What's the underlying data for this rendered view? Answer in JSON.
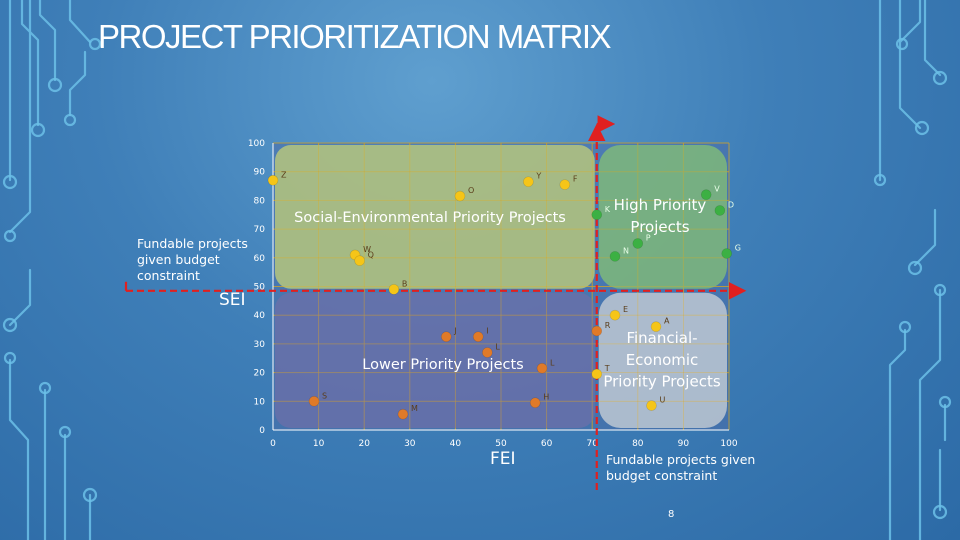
{
  "slide": {
    "title": "PROJECT PRIORITIZATION MATRIX",
    "page_number": "8"
  },
  "colors": {
    "grid": "#c8a030",
    "threshold": "#e02020",
    "quad_social": "#b9c87a",
    "quad_high": "#7fb87a",
    "quad_lower": "#6f6fa8",
    "quad_financial": "#c5cdd4",
    "pt_yellow": "#f5c518",
    "pt_green": "#3cb043",
    "pt_orange": "#e07a28"
  },
  "chart_data": {
    "type": "scatter",
    "title": "PROJECT PRIORITIZATION MATRIX",
    "xlabel": "FEI",
    "ylabel": "SEI",
    "xlim": [
      0,
      100
    ],
    "ylim": [
      0,
      100
    ],
    "x_ticks": [
      0,
      10,
      20,
      30,
      40,
      50,
      60,
      70,
      80,
      90,
      100
    ],
    "y_ticks": [
      0,
      10,
      20,
      30,
      40,
      50,
      60,
      70,
      80,
      90,
      100
    ],
    "grid": true,
    "thresholds": {
      "x": 71,
      "y": 48.5
    },
    "threshold_label_x": "Fundable projects given budget constraint",
    "threshold_label_y": "Fundable projects given budget constraint",
    "quadrants": [
      {
        "key": "social",
        "label": "Social-Environmental Priority Projects",
        "x0": 0,
        "x1": 71,
        "y0": 48.5,
        "y1": 100
      },
      {
        "key": "high",
        "label": "High Priority Projects",
        "x0": 71,
        "x1": 100,
        "y0": 48.5,
        "y1": 100
      },
      {
        "key": "lower",
        "label": "Lower Priority Projects",
        "x0": 0,
        "x1": 71,
        "y0": 0,
        "y1": 48.5
      },
      {
        "key": "financial",
        "label": "Financial-Economic Priority Projects",
        "x0": 71,
        "x1": 100,
        "y0": 0,
        "y1": 48.5
      }
    ],
    "points": [
      {
        "label": "Z",
        "x": 0,
        "y": 87,
        "color": "yellow"
      },
      {
        "label": "O",
        "x": 41,
        "y": 81.5,
        "color": "yellow"
      },
      {
        "label": "Y",
        "x": 56,
        "y": 86.5,
        "color": "yellow"
      },
      {
        "label": "F",
        "x": 64,
        "y": 85.5,
        "color": "yellow"
      },
      {
        "label": "W",
        "x": 18,
        "y": 61,
        "color": "yellow"
      },
      {
        "label": "Q",
        "x": 19,
        "y": 59,
        "color": "yellow"
      },
      {
        "label": "B",
        "x": 26.5,
        "y": 49,
        "color": "yellow"
      },
      {
        "label": "K",
        "x": 71,
        "y": 75,
        "color": "green"
      },
      {
        "label": "V",
        "x": 95,
        "y": 82,
        "color": "green"
      },
      {
        "label": "D",
        "x": 98,
        "y": 76.5,
        "color": "green"
      },
      {
        "label": "P",
        "x": 80,
        "y": 65,
        "color": "green"
      },
      {
        "label": "N",
        "x": 75,
        "y": 60.5,
        "color": "green"
      },
      {
        "label": "G",
        "x": 99.5,
        "y": 61.5,
        "color": "green"
      },
      {
        "label": "E",
        "x": 75,
        "y": 40,
        "color": "yellow"
      },
      {
        "label": "A",
        "x": 84,
        "y": 36,
        "color": "yellow"
      },
      {
        "label": "R",
        "x": 71,
        "y": 34.5,
        "color": "orange"
      },
      {
        "label": "T",
        "x": 71,
        "y": 19.5,
        "color": "yellow"
      },
      {
        "label": "U",
        "x": 83,
        "y": 8.5,
        "color": "yellow"
      },
      {
        "label": "J",
        "x": 38,
        "y": 32.5,
        "color": "orange"
      },
      {
        "label": "I",
        "x": 45,
        "y": 32.5,
        "color": "orange"
      },
      {
        "label": "L",
        "x": 47,
        "y": 27,
        "color": "orange"
      },
      {
        "label": "L",
        "x": 59,
        "y": 21.5,
        "color": "orange"
      },
      {
        "label": "S",
        "x": 9,
        "y": 10,
        "color": "orange"
      },
      {
        "label": "M",
        "x": 28.5,
        "y": 5.5,
        "color": "orange"
      },
      {
        "label": "H",
        "x": 57.5,
        "y": 9.5,
        "color": "orange"
      }
    ]
  }
}
